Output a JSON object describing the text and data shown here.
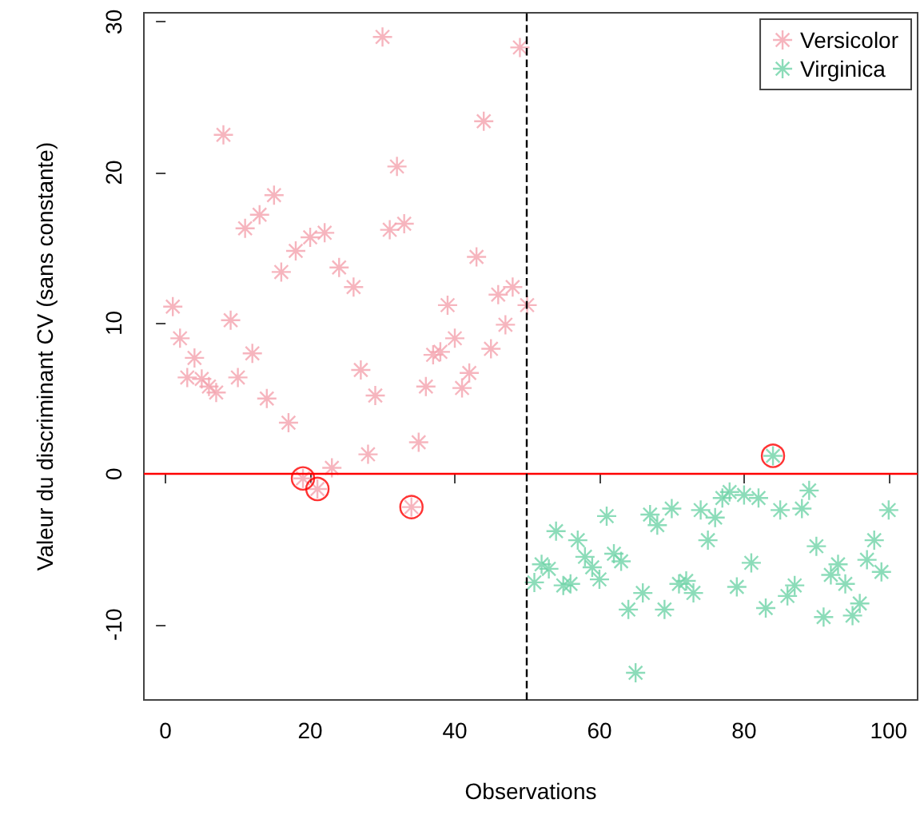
{
  "chart_data": {
    "type": "scatter",
    "xlabel": "Observations",
    "ylabel": "Valeur du discriminant CV (sans constante)",
    "xlim": [
      -3,
      104
    ],
    "ylim": [
      -15,
      30.6
    ],
    "xticks": [
      0,
      20,
      40,
      60,
      80,
      100
    ],
    "yticks": [
      -10,
      0,
      10,
      20,
      30
    ],
    "grid": false,
    "legend": "top right",
    "marker": "star",
    "series": [
      {
        "name": "Versicolor",
        "color": "#f4a3ae",
        "x": [
          1,
          2,
          3,
          4,
          5,
          6,
          7,
          8,
          9,
          10,
          11,
          12,
          13,
          14,
          15,
          16,
          17,
          18,
          19,
          20,
          21,
          22,
          23,
          24,
          26,
          27,
          28,
          29,
          30,
          31,
          32,
          33,
          34,
          35,
          36,
          37,
          38,
          39,
          40,
          41,
          42,
          43,
          44,
          45,
          46,
          47,
          48,
          49,
          50
        ],
        "values": [
          11.1,
          9,
          6.4,
          7.7,
          6.3,
          5.8,
          5.4,
          22.5,
          10.2,
          6.4,
          16.3,
          8,
          17.2,
          5,
          18.5,
          13.4,
          3.4,
          14.8,
          -0.3,
          15.7,
          -1,
          16,
          0.4,
          13.7,
          12.4,
          6.9,
          1.3,
          5.2,
          29,
          16.2,
          20.4,
          16.6,
          -2.2,
          2.1,
          5.8,
          7.9,
          8.1,
          11.2,
          9,
          5.7,
          6.7,
          14.4,
          23.4,
          8.3,
          11.9,
          9.9,
          12.4,
          28.3,
          11.2
        ]
      },
      {
        "name": "Virginica",
        "color": "#6fd3a8",
        "x": [
          51,
          52,
          53,
          54,
          55,
          56,
          57,
          58,
          59,
          60,
          61,
          62,
          63,
          64,
          65,
          66,
          67,
          68,
          69,
          70,
          71,
          72,
          73,
          74,
          75,
          76,
          77,
          78,
          79,
          80,
          81,
          82,
          83,
          84,
          85,
          86,
          87,
          88,
          89,
          90,
          91,
          92,
          93,
          94,
          95,
          96,
          97,
          98,
          99,
          100
        ],
        "values": [
          -7.2,
          -6,
          -6.3,
          -3.8,
          -7.4,
          -7.3,
          -4.4,
          -5.5,
          -6.2,
          -7,
          -2.8,
          -5.3,
          -5.8,
          -9,
          -13.2,
          -7.9,
          -2.7,
          -3.4,
          -9,
          -2.3,
          -7.3,
          -7.1,
          -7.9,
          -2.4,
          -4.4,
          -2.9,
          -1.6,
          -1.2,
          -7.5,
          -1.4,
          -5.9,
          -1.6,
          -8.9,
          1.2,
          -2.4,
          -8.1,
          -7.4,
          -2.3,
          -1.1,
          -4.8,
          -9.5,
          -6.7,
          -6,
          -7.3,
          -9.4,
          -8.6,
          -5.7,
          -4.4,
          -6.5,
          -2.4
        ]
      },
      {
        "color": "#ff0000",
        "marker": "circle",
        "x": [
          19,
          21,
          34,
          84
        ],
        "values": [
          -0.3,
          -1,
          -2.2,
          1.2
        ]
      }
    ],
    "ref_lines": [
      {
        "axis": "y",
        "value": 0,
        "color": "#ff0000",
        "line_style": "solid"
      },
      {
        "axis": "x",
        "value": 50,
        "color": "#000000",
        "line_style": "dashed"
      }
    ]
  }
}
